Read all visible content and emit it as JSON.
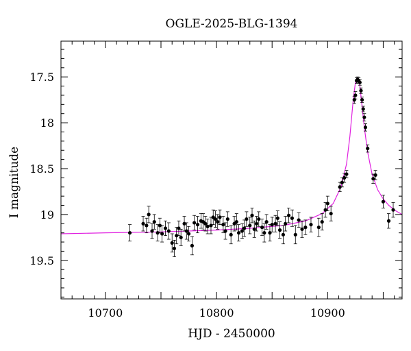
{
  "chart_data": {
    "type": "scatter",
    "title": "OGLE-2025-BLG-1394",
    "xlabel": "HJD - 2450000",
    "ylabel": "I magnitude",
    "xlim": [
      10660,
      10967
    ],
    "ylim": [
      19.92,
      17.11
    ],
    "y_inverted": true,
    "grid": false,
    "x_ticks": [
      10700,
      10800,
      10900
    ],
    "x_tick_labels": [
      "10700",
      "10800",
      "10900"
    ],
    "y_ticks": [
      17.5,
      18,
      18.5,
      19,
      19.5
    ],
    "y_tick_labels": [
      "17.5",
      "18",
      "18.5",
      "19",
      "19.5"
    ],
    "colors": {
      "model": "#e020e0",
      "points": "#000000",
      "axes": "#000000"
    },
    "model": {
      "name": "",
      "x": [
        10660,
        10700,
        10750,
        10800,
        10830,
        10860,
        10880,
        10895,
        10905,
        10912,
        10917,
        10920,
        10923,
        10925,
        10926,
        10927,
        10928,
        10929,
        10931,
        10933,
        10936,
        10940,
        10945,
        10950,
        10955,
        10960,
        10967
      ],
      "y": [
        19.21,
        19.2,
        19.19,
        19.17,
        19.15,
        19.12,
        19.07,
        18.99,
        18.88,
        18.7,
        18.45,
        18.15,
        17.75,
        17.56,
        17.52,
        17.51,
        17.53,
        17.6,
        17.82,
        18.05,
        18.32,
        18.56,
        18.73,
        18.83,
        18.9,
        18.95,
        19.0
      ]
    },
    "series": [
      {
        "name": "",
        "x": [
          10722,
          10734,
          10737,
          10739,
          10742,
          10744,
          10747,
          10749,
          10751,
          10754,
          10757,
          10760,
          10762,
          10764,
          10766,
          10768,
          10771,
          10773,
          10775,
          10778,
          10780,
          10783,
          10786,
          10788,
          10790,
          10792,
          10795,
          10797,
          10799,
          10801,
          10803,
          10806,
          10808,
          10810,
          10813,
          10816,
          10818,
          10820,
          10823,
          10825,
          10827,
          10830,
          10832,
          10834,
          10836,
          10838,
          10841,
          10843,
          10845,
          10848,
          10850,
          10853,
          10855,
          10857,
          10860,
          10862,
          10865,
          10868,
          10871,
          10874,
          10877,
          10880,
          10885,
          10892,
          10895,
          10898,
          10900,
          10903,
          10911,
          10913,
          10915,
          10917,
          10924,
          10925,
          10926,
          10927,
          10928,
          10929,
          10930,
          10931,
          10932,
          10933,
          10934,
          10936,
          10941,
          10943,
          10950,
          10955,
          10959
        ],
        "y": [
          19.2,
          19.1,
          19.12,
          19.0,
          19.18,
          19.08,
          19.2,
          19.12,
          19.21,
          19.15,
          19.18,
          19.31,
          19.37,
          19.23,
          19.15,
          19.25,
          19.1,
          19.18,
          19.21,
          19.34,
          19.09,
          19.11,
          19.07,
          19.08,
          19.1,
          19.13,
          19.12,
          19.03,
          19.05,
          19.08,
          19.03,
          19.11,
          19.18,
          19.05,
          19.22,
          19.1,
          19.08,
          19.2,
          19.18,
          19.15,
          19.05,
          19.12,
          19.01,
          19.16,
          19.1,
          19.05,
          19.14,
          19.2,
          19.08,
          19.2,
          19.11,
          19.1,
          19.04,
          19.17,
          19.22,
          19.1,
          19.01,
          19.04,
          19.22,
          19.06,
          19.16,
          19.14,
          19.11,
          19.14,
          19.08,
          18.95,
          18.88,
          18.99,
          18.7,
          18.65,
          18.6,
          18.56,
          17.75,
          17.7,
          17.54,
          17.53,
          17.54,
          17.56,
          17.65,
          17.75,
          17.85,
          17.94,
          18.05,
          18.28,
          18.61,
          18.57,
          18.86,
          19.07,
          18.95
        ],
        "yerr": [
          0.09,
          0.08,
          0.08,
          0.09,
          0.08,
          0.08,
          0.09,
          0.08,
          0.09,
          0.08,
          0.09,
          0.1,
          0.09,
          0.09,
          0.08,
          0.09,
          0.08,
          0.09,
          0.08,
          0.1,
          0.08,
          0.09,
          0.08,
          0.09,
          0.08,
          0.08,
          0.09,
          0.08,
          0.09,
          0.08,
          0.08,
          0.09,
          0.09,
          0.08,
          0.1,
          0.08,
          0.09,
          0.09,
          0.08,
          0.09,
          0.08,
          0.09,
          0.08,
          0.09,
          0.08,
          0.08,
          0.09,
          0.1,
          0.08,
          0.09,
          0.08,
          0.09,
          0.08,
          0.09,
          0.1,
          0.08,
          0.08,
          0.09,
          0.1,
          0.08,
          0.09,
          0.08,
          0.08,
          0.1,
          0.09,
          0.08,
          0.08,
          0.08,
          0.05,
          0.05,
          0.05,
          0.04,
          0.04,
          0.04,
          0.03,
          0.03,
          0.03,
          0.03,
          0.03,
          0.03,
          0.03,
          0.04,
          0.04,
          0.04,
          0.05,
          0.05,
          0.07,
          0.08,
          0.08
        ]
      }
    ]
  }
}
